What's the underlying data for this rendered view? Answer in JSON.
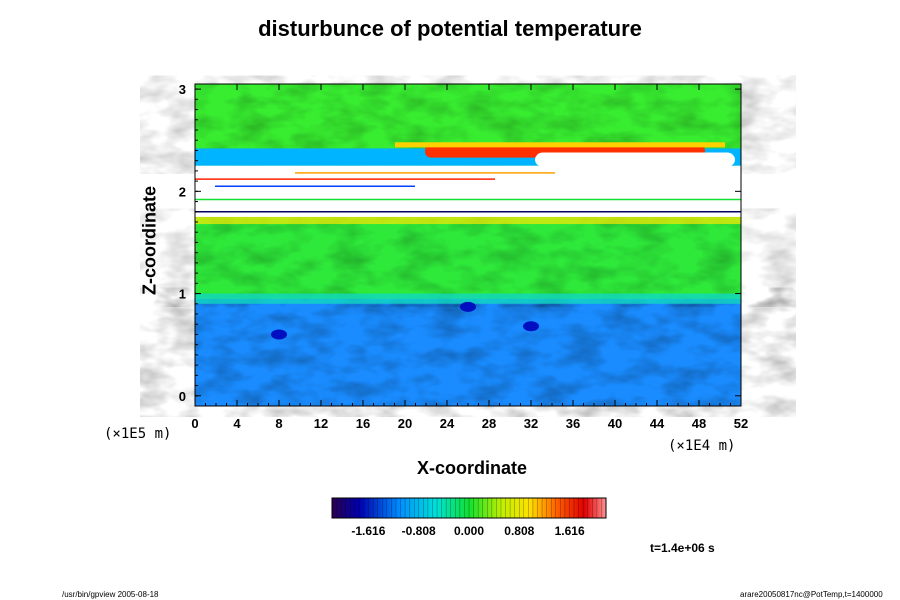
{
  "chart_data": {
    "type": "heatmap",
    "title": "disturbunce of potential temperature",
    "xlabel": "X-coordinate",
    "ylabel": "Z-coordinate",
    "x_ticks": [
      "0",
      "4",
      "8",
      "12",
      "16",
      "20",
      "24",
      "28",
      "32",
      "36",
      "40",
      "44",
      "48",
      "52"
    ],
    "y_ticks": [
      "0",
      "1",
      "2",
      "3"
    ],
    "xlim": [
      0,
      52
    ],
    "ylim": [
      -0.1,
      3.05
    ],
    "x_unit": "(×1E4 m)",
    "y_unit": "(×1E5 m)",
    "colorbar": {
      "ticks": [
        "-1.616",
        "-0.808",
        "0.000",
        "0.808",
        "1.616"
      ],
      "range": [
        -2.2,
        2.2
      ]
    },
    "field_description": {
      "lower_layer": {
        "z_range": [
          0,
          0.95
        ],
        "value": -1.0
      },
      "middle_layer": {
        "z_range": [
          0.95,
          1.75
        ],
        "value": 0.4
      },
      "white_band": {
        "z_range": [
          1.75,
          2.25
        ],
        "value": "out of range"
      },
      "upper_layer": {
        "z_range": [
          2.25,
          3.05
        ],
        "value": 0.5
      }
    },
    "grid": false
  },
  "footer": {
    "time": "t=1.4e+06 s",
    "left_note": "/usr/bin/gpview 2005-08-18",
    "right_note": "arare20050817nc@PotTemp,t=1400000"
  }
}
